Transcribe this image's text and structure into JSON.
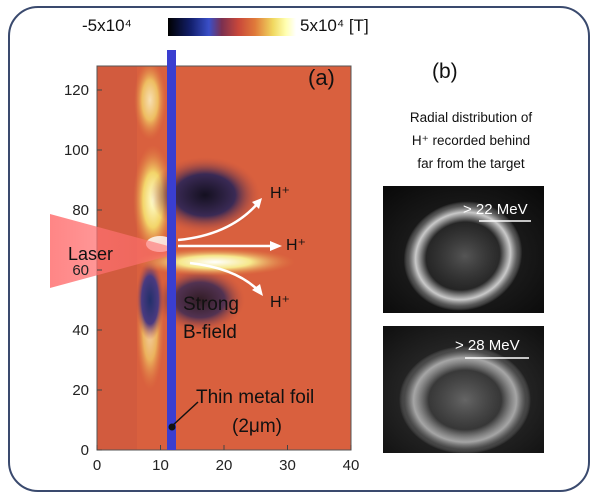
{
  "colorbar": {
    "min_label": "-5x10⁴",
    "max_label": "5x10⁴ [T]",
    "stops": [
      "#000000",
      "#13206e",
      "#3a4fc8",
      "#7b3050",
      "#c8473a",
      "#e07a3a",
      "#f0d860",
      "#ffffb0",
      "#ffffff"
    ]
  },
  "panel_a": {
    "label": "(a)",
    "x_ticks": [
      "0",
      "10",
      "20",
      "30",
      "40"
    ],
    "y_ticks": [
      "0",
      "20",
      "40",
      "60",
      "80",
      "100",
      "120"
    ],
    "x_range": [
      0,
      40
    ],
    "y_range": [
      0,
      128
    ],
    "foil_x": 11,
    "laser_label": "Laser",
    "proton_labels": [
      "H⁺",
      "H⁺",
      "H⁺"
    ],
    "strong_b_line1": "Strong",
    "strong_b_line2": "B-field",
    "foil_label_line1": "Thin metal foil",
    "foil_label_line2": "(2μm)",
    "colors": {
      "background": "#d9603e",
      "foil": "#3a3ed0",
      "laser": "#ff6a6a"
    }
  },
  "panel_b": {
    "label": "(b)",
    "caption": [
      "Radial distribution of",
      "H⁺ recorded  behind",
      "far from the target"
    ],
    "images": [
      {
        "energy_label": "> 22 MeV"
      },
      {
        "energy_label": "> 28 MeV"
      }
    ]
  }
}
